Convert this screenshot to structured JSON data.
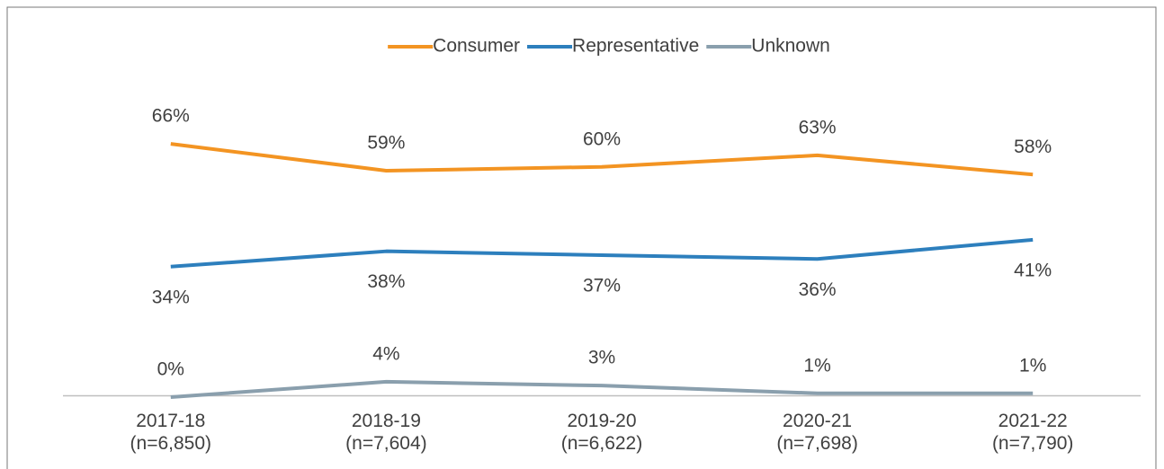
{
  "chart_data": {
    "type": "line",
    "categories": [
      "2017-18\n(n=6,850)",
      "2018-19\n(n=7,604)",
      "2019-20\n(n=6,622)",
      "2020-21\n(n=7,698)",
      "2021-22\n(n=7,790)"
    ],
    "series": [
      {
        "name": "Consumer",
        "color": "#f39422",
        "values": [
          66,
          59,
          60,
          63,
          58
        ],
        "value_labels": [
          "66%",
          "59%",
          "60%",
          "63%",
          "58%"
        ],
        "label_position": "above"
      },
      {
        "name": "Representative",
        "color": "#2d7fbd",
        "values": [
          34,
          38,
          37,
          36,
          41
        ],
        "value_labels": [
          "34%",
          "38%",
          "37%",
          "36%",
          "41%"
        ],
        "label_position": "below"
      },
      {
        "name": "Unknown",
        "color": "#8a9fad",
        "values": [
          0,
          4,
          3,
          1,
          1
        ],
        "value_labels": [
          "0%",
          "4%",
          "3%",
          "1%",
          "1%"
        ],
        "label_position": "above"
      }
    ],
    "ylim": [
      0,
      70
    ],
    "legend": "top"
  }
}
